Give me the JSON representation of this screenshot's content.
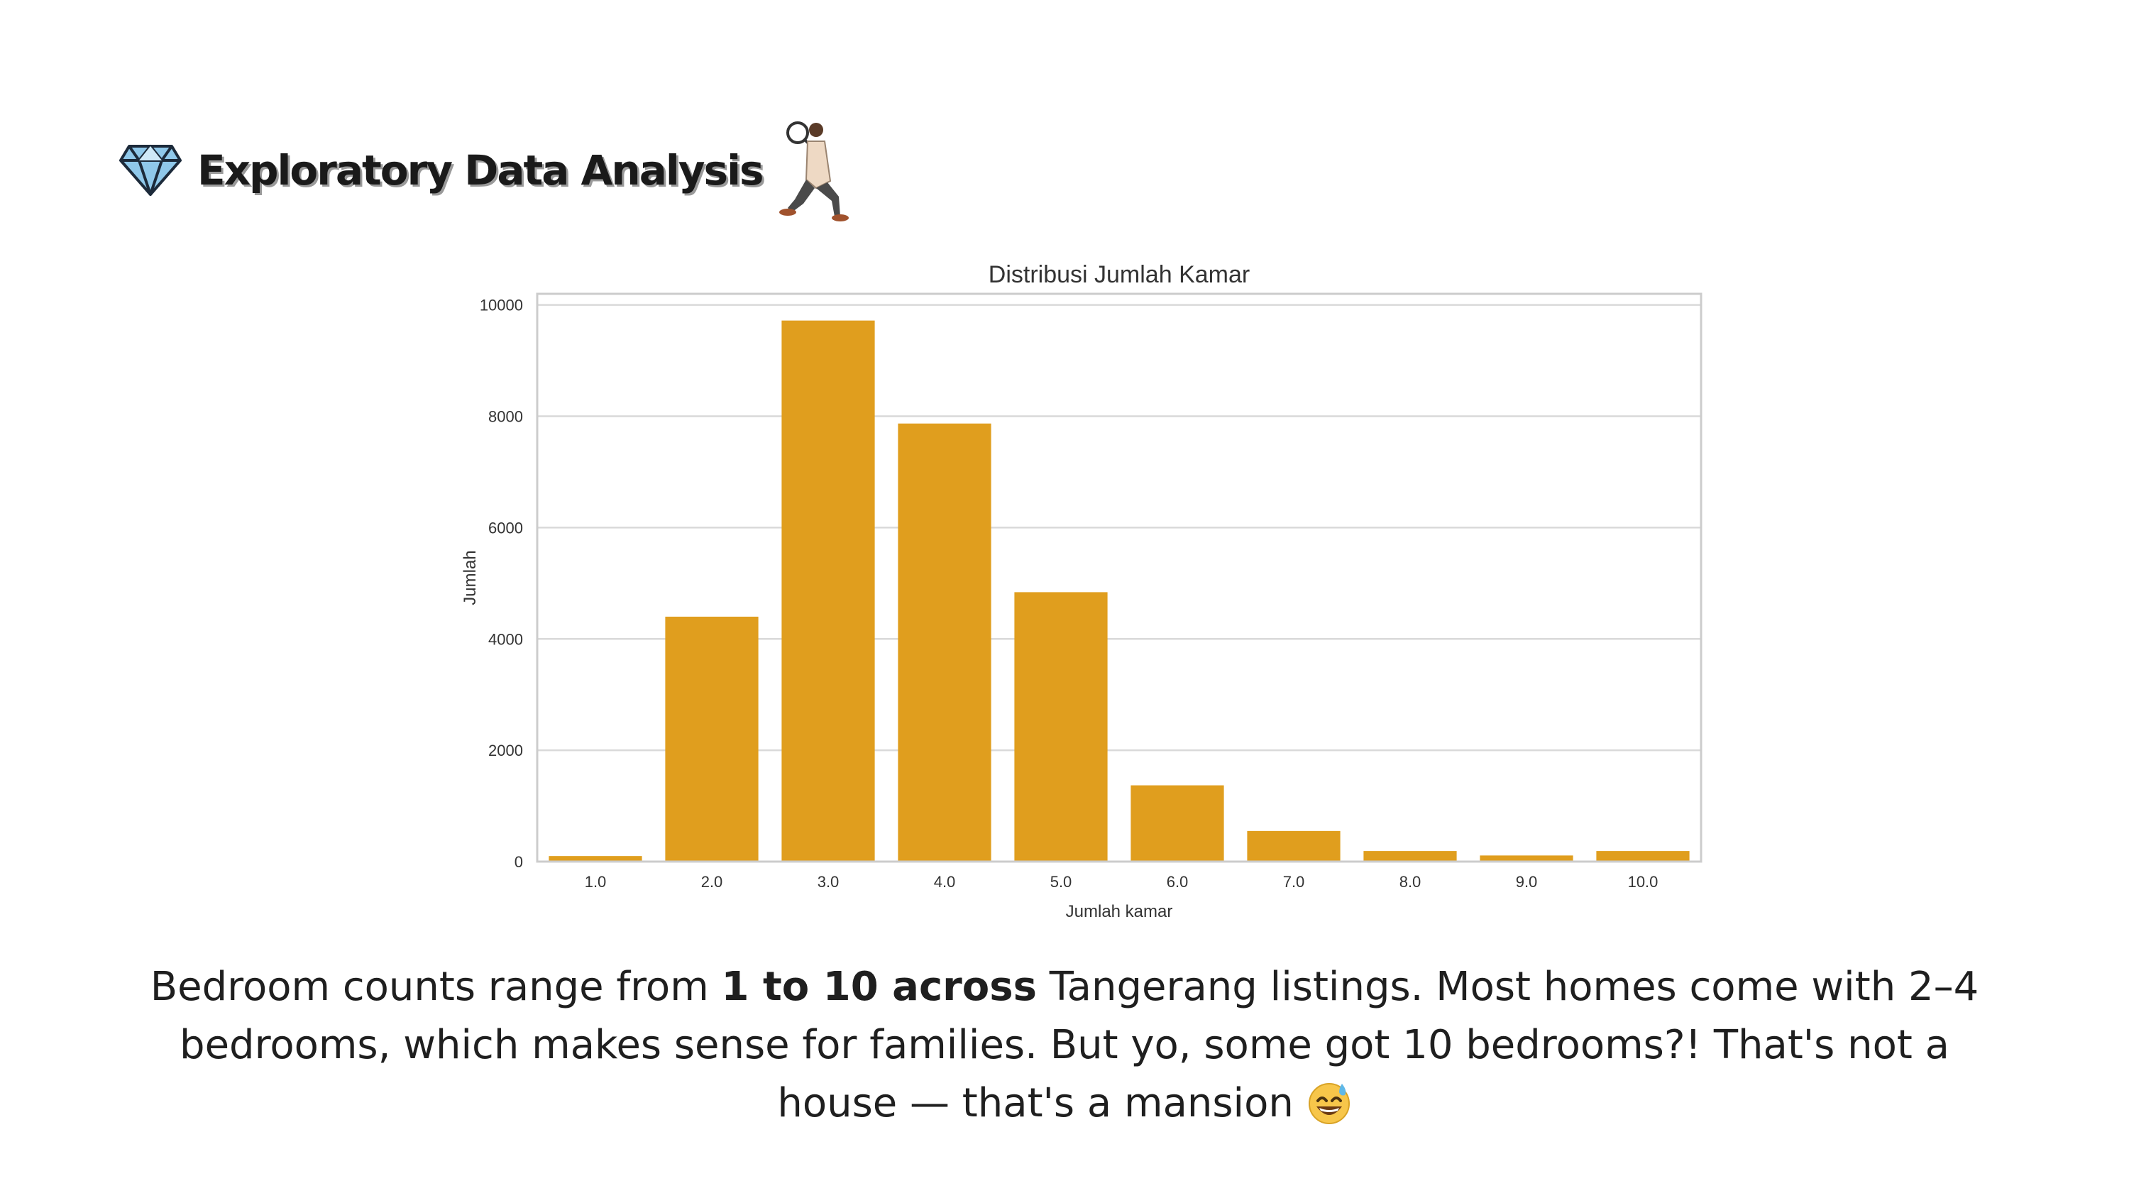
{
  "header": {
    "title": "Exploratory Data Analysis",
    "gem_icon": "diamond-icon",
    "detective_icon": "detective-with-magnifier-icon"
  },
  "colors": {
    "bar": "#E09E1E",
    "grid": "#D9D9D9",
    "frame": "#CCCCCC",
    "text": "#1F1F1F"
  },
  "chart_data": {
    "type": "bar",
    "title": "Distribusi Jumlah Kamar",
    "xlabel": "Jumlah kamar",
    "ylabel": "Jumlah",
    "categories": [
      "1.0",
      "2.0",
      "3.0",
      "4.0",
      "5.0",
      "6.0",
      "7.0",
      "8.0",
      "9.0",
      "10.0"
    ],
    "values": [
      100,
      4400,
      9720,
      7870,
      4840,
      1370,
      550,
      190,
      110,
      190
    ],
    "yticks": [
      "0",
      "2000",
      "4000",
      "6000",
      "8000",
      "10000"
    ],
    "ylim": [
      0,
      10200
    ],
    "grid": true,
    "bar_color": "#E09E1E"
  },
  "caption": {
    "part1": "Bedroom counts range from ",
    "bold": "1 to 10 across",
    "part2": " Tangerang listings. Most homes come with 2–4 bedrooms, which makes sense for families. But yo, some got 10 bedrooms?! That's not a house — that's a mansion ",
    "emoji_icon": "sweat-smile-emoji-icon"
  }
}
